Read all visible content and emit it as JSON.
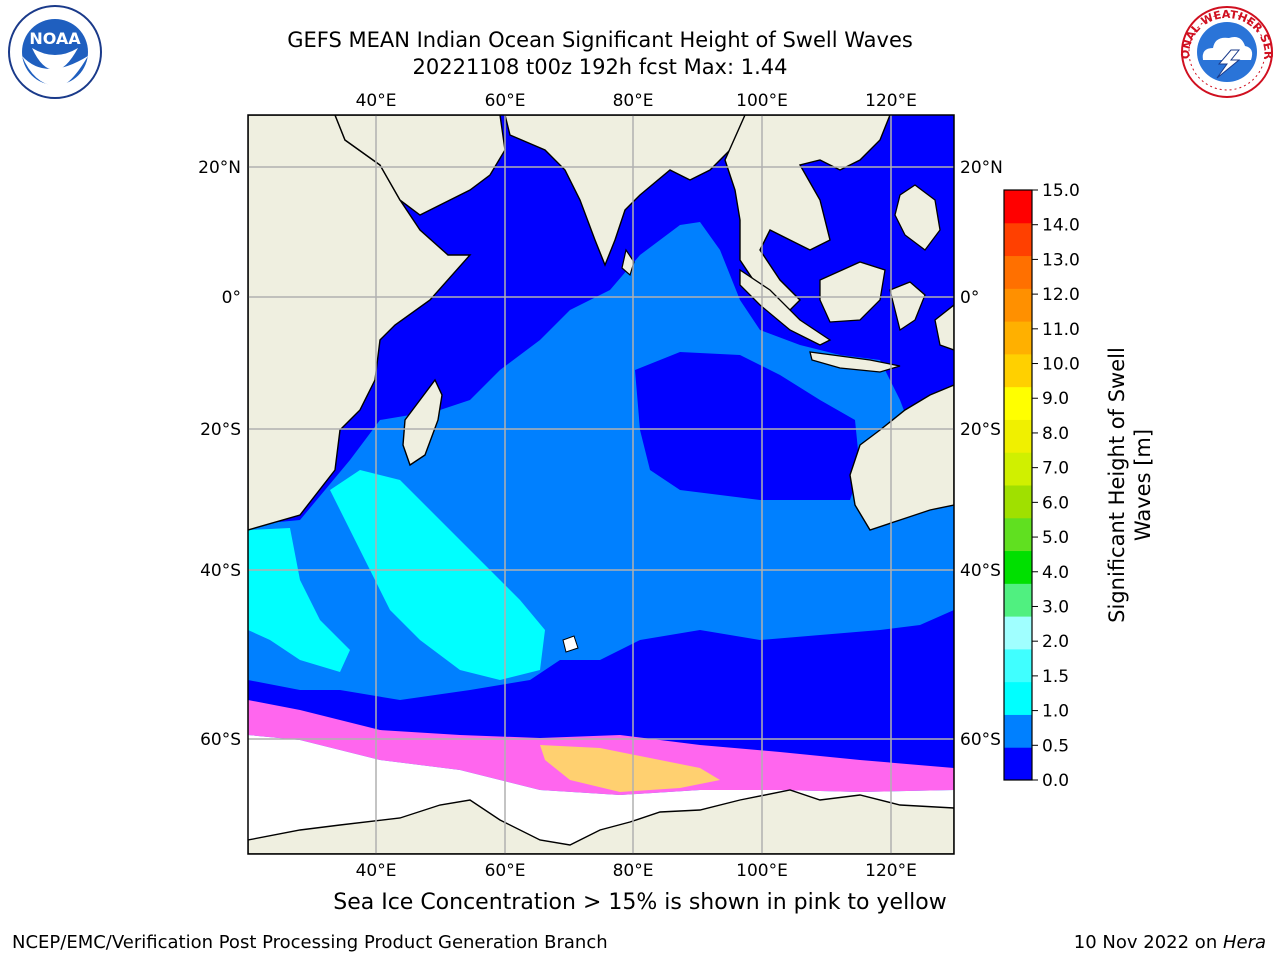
{
  "title": {
    "line1": "GEFS MEAN Indian Ocean Significant Height of Swell Waves",
    "line2": "20221108 t00z 192h fcst   Max: 1.44"
  },
  "axes": {
    "lon_labels": [
      "40°E",
      "60°E",
      "80°E",
      "100°E",
      "120°E"
    ],
    "lat_labels": [
      "20°N",
      "0°",
      "20°S",
      "40°S",
      "60°S"
    ],
    "lon_values": [
      40,
      60,
      80,
      100,
      120
    ],
    "lat_values": [
      20,
      0,
      -20,
      -40,
      -60
    ]
  },
  "colorbar": {
    "label_line1": "Significant Height of Swell",
    "label_line2": "Waves [m]",
    "ticks": [
      "15.0",
      "14.0",
      "13.0",
      "12.0",
      "11.0",
      "10.0",
      "9.0",
      "8.0",
      "7.0",
      "6.0",
      "5.0",
      "4.0",
      "3.0",
      "2.0",
      "1.5",
      "1.0",
      "0.5",
      "0.0"
    ],
    "colors": [
      "#0000ff",
      "#0080ff",
      "#00ffff",
      "#40ffff",
      "#a0ffff",
      "#50f080",
      "#00e000",
      "#60e020",
      "#a0e000",
      "#d0f000",
      "#f0f000",
      "#ffff00",
      "#ffd000",
      "#ffb000",
      "#ff9000",
      "#ff7000",
      "#ff4000",
      "#ff0000"
    ]
  },
  "caption": "Sea Ice Concentration > 15% is shown in pink to yellow",
  "footer": {
    "left": "NCEP/EMC/Verification Post Processing Product Generation Branch",
    "right_date": "10 Nov 2022 on ",
    "right_machine": "Hera"
  },
  "logos": {
    "noaa_text": "NOAA",
    "nws_text": "NATIONAL WEATHER SERVICE"
  },
  "palette": {
    "land": "#efefe0",
    "ocean_low": "#0000ff",
    "ocean_mid": "#0080ff",
    "ocean_high": "#00ffff",
    "ice_pink": "#ff66ee",
    "ice_yellow": "#ffe070",
    "grid": "#b0b0b0"
  }
}
